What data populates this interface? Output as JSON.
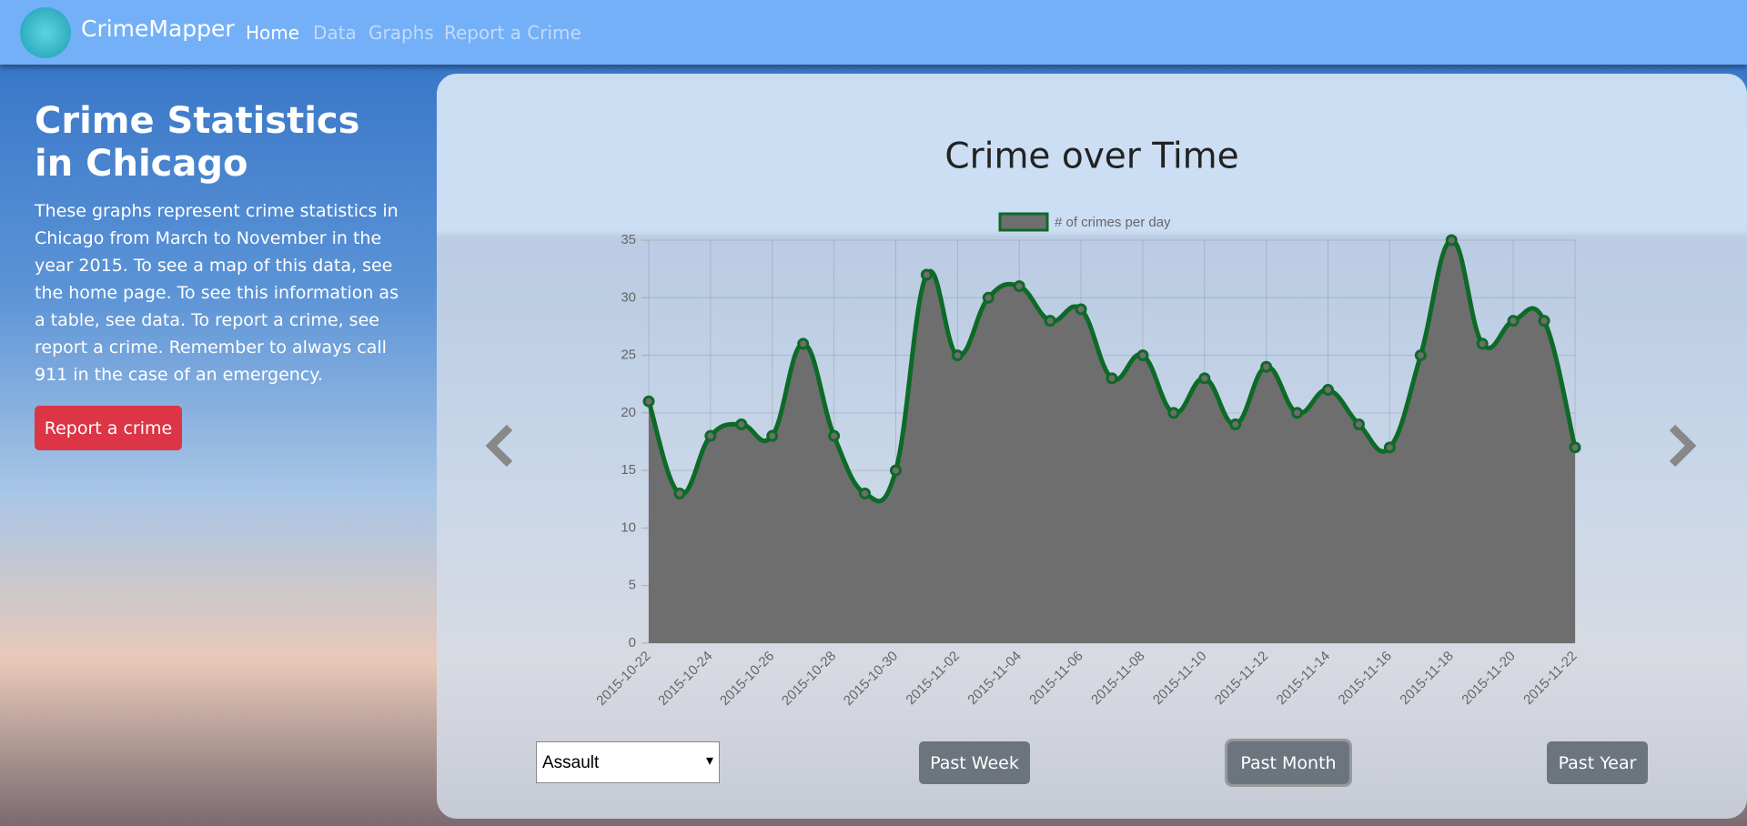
{
  "nav": {
    "brand": "CrimeMapper",
    "links": [
      "Home",
      "Data",
      "Graphs",
      "Report a Crime"
    ]
  },
  "sidebar": {
    "title": "Crime Statistics in Chicago",
    "text": "These graphs represent crime statistics in Chicago from March to November in the year 2015. To see a map of this data, see the home page. To see this information as a table, see data. To report a crime, see report a crime. Remember to always call 911 in the case of an emergency.",
    "button": "Report a crime"
  },
  "chart_data": {
    "type": "line",
    "title": "Crime over Time",
    "categories": [
      "2015-10-22",
      null,
      "2015-10-24",
      null,
      "2015-10-26",
      null,
      "2015-10-28",
      null,
      "2015-10-30",
      null,
      "2015-11-02",
      null,
      "2015-11-04",
      null,
      "2015-11-06",
      null,
      "2015-11-08",
      null,
      "2015-11-10",
      null,
      "2015-11-12",
      null,
      "2015-11-14",
      null,
      "2015-11-16",
      null,
      "2015-11-18",
      null,
      "2015-11-20",
      null,
      "2015-11-22"
    ],
    "series": [
      {
        "name": "# of crimes per day",
        "color": "#0d6a27",
        "fill": "#6e6e6e",
        "values": [
          21,
          13,
          18,
          19,
          18,
          26,
          18,
          13,
          15,
          32,
          25,
          30,
          31,
          28,
          29,
          23,
          25,
          20,
          23,
          19,
          24,
          20,
          22,
          19,
          17,
          25,
          35,
          26,
          28,
          28,
          17
        ]
      }
    ],
    "ylim": [
      0,
      35
    ],
    "yticks": [
      0,
      5,
      10,
      15,
      20,
      25,
      30,
      35
    ],
    "grid": true,
    "legend": "top"
  },
  "controls": {
    "select": "Assault",
    "buttons": [
      "Past Week",
      "Past Month",
      "Past Year"
    ]
  }
}
